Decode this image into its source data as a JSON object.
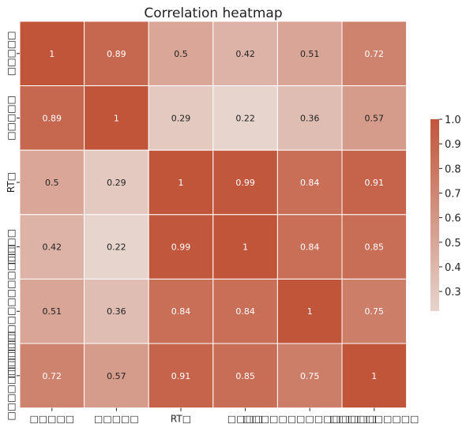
{
  "chart_data": {
    "type": "heatmap",
    "title": "Correlation heatmap",
    "row_labels": [
      "□□□□□",
      "□□□□□",
      "RT□",
      "□□□□",
      "□□□□□□□□□□□□□□□",
      "□□□□□□□□□□"
    ],
    "col_labels": [
      "□□□□□",
      "□□□□□",
      "RT□",
      "□□□□",
      "□□□□□□□□□□□□□□□",
      "□□□□□□□□□□"
    ],
    "values": [
      [
        1,
        0.89,
        0.5,
        0.42,
        0.51,
        0.72
      ],
      [
        0.89,
        1,
        0.29,
        0.22,
        0.36,
        0.57
      ],
      [
        0.5,
        0.29,
        1,
        0.99,
        0.84,
        0.91
      ],
      [
        0.42,
        0.22,
        0.99,
        1,
        0.84,
        0.85
      ],
      [
        0.51,
        0.36,
        0.84,
        0.84,
        1,
        0.75
      ],
      [
        0.72,
        0.57,
        0.91,
        0.85,
        0.75,
        1
      ]
    ],
    "vmin": 0.22,
    "vmax": 1.0,
    "colorbar_ticks": [
      "1.0",
      "0.9",
      "0.8",
      "0.7",
      "0.6",
      "0.5",
      "0.4",
      "0.3"
    ],
    "colors": {
      "low": "#e6d4cd",
      "high": "#c1553a",
      "grid_line": "#ffffff"
    },
    "annotated": true,
    "grid": false,
    "legend": "colorbar-right"
  }
}
